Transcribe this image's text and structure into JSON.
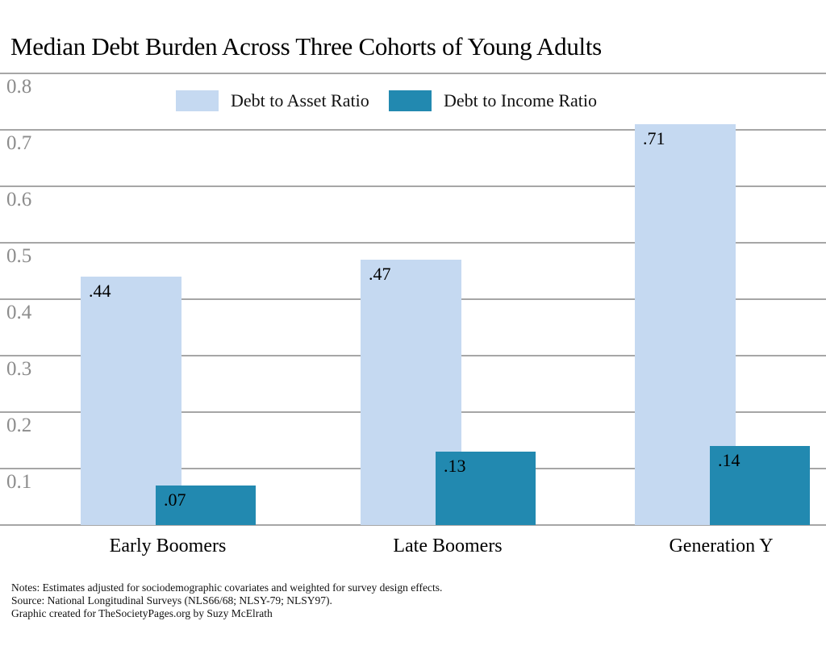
{
  "title": "Median Debt Burden Across Three Cohorts of Young Adults",
  "chart_data": {
    "type": "bar",
    "title": "Median Debt Burden Across Three Cohorts of Young Adults",
    "categories": [
      "Early Boomers",
      "Late Boomers",
      "Generation Y"
    ],
    "series": [
      {
        "name": "Debt to Asset Ratio",
        "color": "#c5d9f1",
        "values": [
          0.44,
          0.47,
          0.71
        ],
        "value_labels": [
          ".44",
          ".47",
          ".71"
        ]
      },
      {
        "name": "Debt to Income Ratio",
        "color": "#2289b0",
        "values": [
          0.07,
          0.13,
          0.14
        ],
        "value_labels": [
          ".07",
          ".13",
          ".14"
        ]
      }
    ],
    "xlabel": "",
    "ylabel": "",
    "ylim": [
      0,
      0.8
    ],
    "yticks": [
      0.8,
      0.7,
      0.6,
      0.5,
      0.4,
      0.3,
      0.2,
      0.1
    ],
    "ytick_labels": [
      "0.8",
      "0.7",
      "0.6",
      "0.5",
      "0.4",
      "0.3",
      "0.2",
      "0.1"
    ],
    "grid": true,
    "legend_position": "top"
  },
  "legend": {
    "items": [
      {
        "label": "Debt to Asset Ratio",
        "color": "#c5d9f1"
      },
      {
        "label": "Debt to Income Ratio",
        "color": "#2289b0"
      }
    ]
  },
  "notes": [
    "Notes: Estimates adjusted for sociodemographic covariates and weighted for survey design effects.",
    "Source: National Longitudinal Surveys (NLS66/68; NLSY-79; NLSY97).",
    "Graphic created for TheSocietyPages.org by Suzy McElrath"
  ],
  "colors": {
    "grid": "#a6a6a6",
    "tick_label": "#8c8c8c",
    "text": "#000000",
    "background": "#ffffff"
  }
}
